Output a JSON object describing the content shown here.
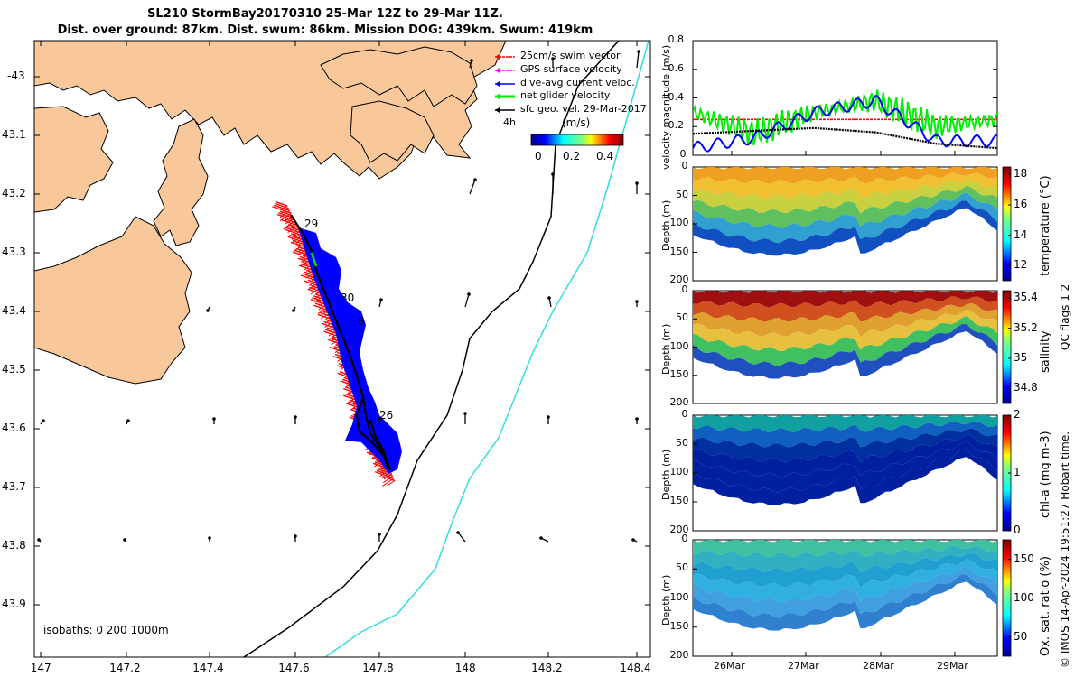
{
  "title": {
    "line1": "SL210 StormBay20170310 25-Mar 12Z to 29-Mar 11Z.",
    "line2": "Dist. over ground: 87km. Dist. swum: 86km. Mission DOG: 439km. Swum: 419km"
  },
  "map": {
    "legend": [
      {
        "label": "25cm/s swim vector",
        "color": "#ff0000"
      },
      {
        "label": "GPS surface velocity",
        "color": "#ff00ff"
      },
      {
        "label": "dive-avg current veloc.",
        "color": "#0000ff"
      },
      {
        "label": "net glider velocity",
        "color": "#00ee00"
      },
      {
        "label": "sfc geo. vel. 29-Mar-2017",
        "color": "#000000"
      }
    ],
    "colorbar_unit": "(m/s)",
    "colorbar_prefix": "4h",
    "colorbar_ticks": [
      "0",
      "0.2",
      "0.4"
    ],
    "lon_ticks": [
      "147",
      "147.2",
      "147.4",
      "147.6",
      "147.8",
      "148",
      "148.2",
      "148.4"
    ],
    "lat_ticks": [
      "-43",
      "43.1",
      "43.2",
      "43.3",
      "43.4",
      "43.5",
      "43.6",
      "43.7",
      "43.8",
      "43.9"
    ],
    "isobath_text": "isobaths: 0   200  1000m",
    "day_labels": [
      "29",
      "30",
      "8",
      "26"
    ],
    "colors": {
      "land": "#f8c89a",
      "track": "#000000",
      "current": "#0000ff",
      "swim": "#ff0000",
      "isobath200": "#000000",
      "isobath1000": "#33dddd"
    }
  },
  "chart_data": [
    {
      "type": "line",
      "ylabel": "velocity magnitude (m/s)",
      "ylim": [
        0,
        0.8
      ],
      "yticks": [
        "0",
        "0.2",
        "0.4",
        "0.6",
        "0.8"
      ],
      "x": [
        "25-Mar 12Z",
        "26-Mar",
        "27-Mar",
        "28-Mar",
        "29-Mar",
        "29-Mar 11Z"
      ],
      "series": [
        {
          "color": "#ff0000",
          "values": [
            0.25,
            0.25,
            0.25,
            0.25,
            0.25,
            0.25
          ]
        },
        {
          "color": "#00ee00",
          "values": [
            0.3,
            0.15,
            0.3,
            0.38,
            0.2,
            0.25
          ]
        },
        {
          "color": "#0000ff",
          "values": [
            0.05,
            0.12,
            0.3,
            0.38,
            0.1,
            0.1
          ]
        },
        {
          "color": "#000000",
          "values": [
            0.15,
            0.17,
            0.19,
            0.16,
            0.08,
            0.05
          ]
        }
      ]
    },
    {
      "type": "heatmap",
      "ylabel": "Depth (m)",
      "yticks": [
        "0",
        "50",
        "100",
        "150",
        "200"
      ],
      "ylim": [
        0,
        200
      ],
      "colorbar_label": "temperature (°C)",
      "colorbar_ticks": [
        "12",
        "14",
        "16",
        "18"
      ],
      "clim": [
        11,
        18.5
      ]
    },
    {
      "type": "heatmap",
      "ylabel": "Depth (m)",
      "yticks": [
        "0",
        "50",
        "100",
        "150",
        "200"
      ],
      "ylim": [
        0,
        200
      ],
      "colorbar_label": "salinity",
      "colorbar_ticks": [
        "34.8",
        "35",
        "35.2",
        "35.4"
      ],
      "clim": [
        34.7,
        35.45
      ]
    },
    {
      "type": "heatmap",
      "ylabel": "Depth (m)",
      "yticks": [
        "0",
        "50",
        "100",
        "150",
        "200"
      ],
      "ylim": [
        0,
        200
      ],
      "colorbar_label": "chl-a (mg m-3)",
      "colorbar_ticks": [
        "0",
        "1",
        "2"
      ],
      "clim": [
        0,
        2
      ]
    },
    {
      "type": "heatmap",
      "ylabel": "Depth (m)",
      "yticks": [
        "0",
        "50",
        "100",
        "150",
        "200"
      ],
      "ylim": [
        0,
        200
      ],
      "colorbar_label": "Ox. sat. ratio (%)",
      "colorbar_ticks": [
        "50",
        "100",
        "150"
      ],
      "clim": [
        25,
        175
      ]
    }
  ],
  "time_axis": [
    "26Mar",
    "27Mar",
    "28Mar",
    "29Mar"
  ],
  "qc_text": "QC flags 1  2",
  "credit": "© IMOS 14-Apr-2024 19:51:27 Hobart time."
}
